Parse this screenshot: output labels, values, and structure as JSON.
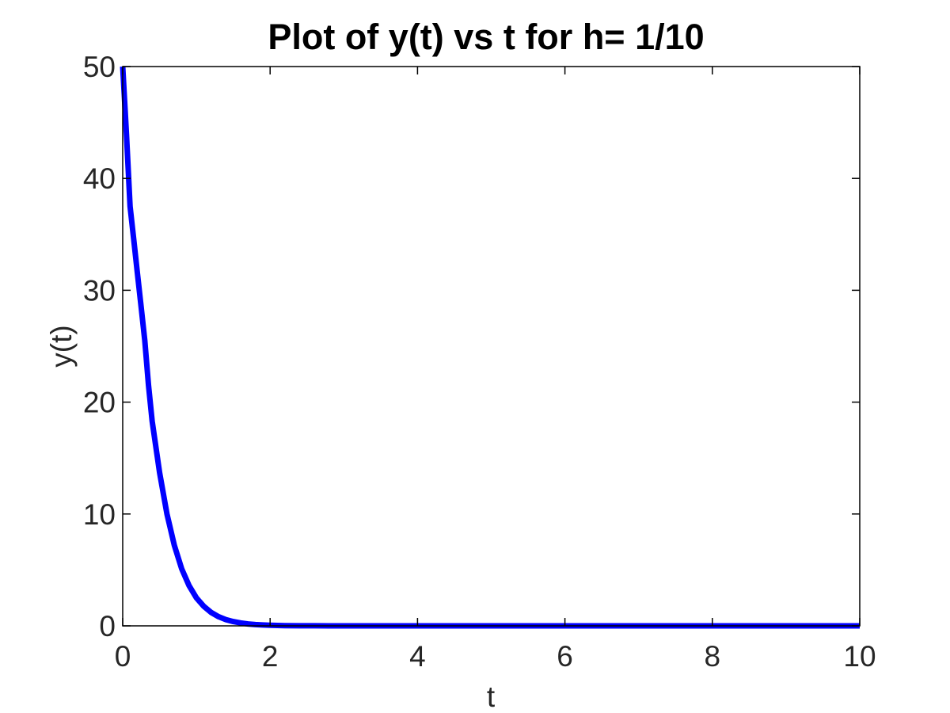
{
  "chart_data": {
    "type": "line",
    "title": "Plot of y(t) vs t for h= 1/10",
    "xlabel": "t",
    "ylabel": "y(t)",
    "xlim": [
      0,
      10
    ],
    "ylim": [
      0,
      50
    ],
    "xticks": [
      0,
      2,
      4,
      6,
      8,
      10
    ],
    "yticks": [
      0,
      10,
      20,
      30,
      40,
      50
    ],
    "xtick_labels": [
      "0",
      "2",
      "4",
      "6",
      "8",
      "10"
    ],
    "ytick_labels": [
      "0",
      "10",
      "20",
      "30",
      "40",
      "50"
    ],
    "grid": false,
    "series": [
      {
        "color": "#0000ff",
        "x": [
          0,
          0.05,
          0.1,
          0.15,
          0.2,
          0.25,
          0.3,
          0.35,
          0.4,
          0.5,
          0.6,
          0.7,
          0.8,
          0.9,
          1.0,
          1.1,
          1.2,
          1.3,
          1.4,
          1.5,
          1.6,
          1.7,
          1.8,
          1.9,
          2.0,
          2.2,
          2.4,
          2.6,
          2.8,
          3.0,
          3.5,
          4.0,
          5.0,
          6.0,
          7.0,
          8.0,
          9.0,
          10.0
        ],
        "y": [
          50,
          44,
          37.5,
          34.5,
          31.5,
          28.5,
          25.5,
          21.5,
          18.3,
          13.7,
          10.0,
          7.2,
          5.1,
          3.6,
          2.5,
          1.75,
          1.2,
          0.82,
          0.56,
          0.38,
          0.26,
          0.17,
          0.11,
          0.075,
          0.05,
          0.022,
          0.01,
          0.004,
          0.002,
          0.001,
          0.0002,
          0,
          0,
          0,
          0,
          0,
          0,
          0
        ]
      }
    ]
  }
}
